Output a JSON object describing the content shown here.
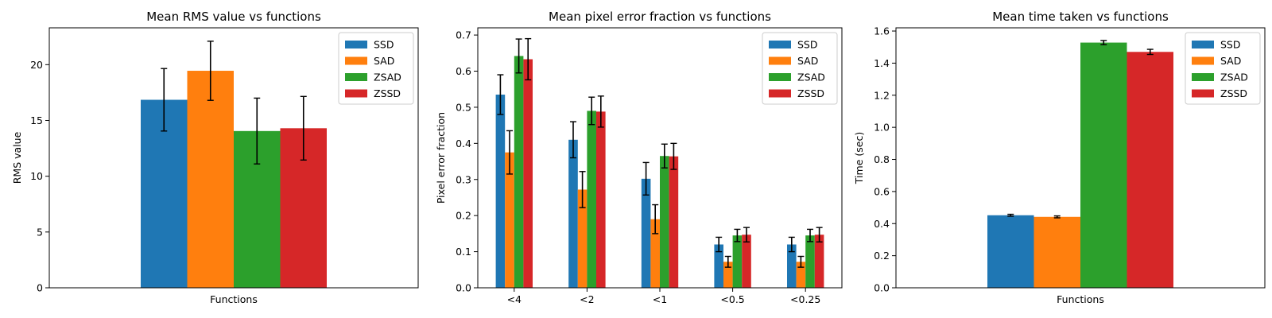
{
  "figure": {
    "colors": [
      "#1f77b4",
      "#ff7f0e",
      "#2ca02c",
      "#d62728"
    ]
  },
  "chart_data": [
    {
      "type": "bar",
      "title": "Mean RMS value vs functions",
      "xlabel": "Functions",
      "ylabel": "RMS value",
      "categories": [
        ""
      ],
      "ylim": [
        0,
        23.3
      ],
      "yticks": [
        0,
        5,
        10,
        15,
        20
      ],
      "legend": "top-right",
      "grid": false,
      "series": [
        {
          "name": "SSD",
          "values": [
            16.85
          ],
          "errors": [
            2.8
          ]
        },
        {
          "name": "SAD",
          "values": [
            19.45
          ],
          "errors": [
            2.65
          ]
        },
        {
          "name": "ZSAD",
          "values": [
            14.05
          ],
          "errors": [
            2.95
          ]
        },
        {
          "name": "ZSSD",
          "values": [
            14.3
          ],
          "errors": [
            2.85
          ]
        }
      ]
    },
    {
      "type": "bar",
      "title": "Mean pixel error fraction vs functions",
      "xlabel": "",
      "ylabel": "Pixel error fraction",
      "categories": [
        "<4",
        "<2",
        "<1",
        "<0.5",
        "<0.25"
      ],
      "ylim": [
        0,
        0.72
      ],
      "yticks": [
        0.0,
        0.1,
        0.2,
        0.3,
        0.4,
        0.5,
        0.6,
        0.7
      ],
      "legend": "top-right",
      "grid": false,
      "series": [
        {
          "name": "SSD",
          "values": [
            0.535,
            0.41,
            0.302,
            0.12,
            0.12
          ],
          "errors": [
            0.055,
            0.05,
            0.045,
            0.02,
            0.02
          ]
        },
        {
          "name": "SAD",
          "values": [
            0.375,
            0.272,
            0.19,
            0.072,
            0.072
          ],
          "errors": [
            0.06,
            0.05,
            0.04,
            0.015,
            0.015
          ]
        },
        {
          "name": "ZSAD",
          "values": [
            0.642,
            0.49,
            0.365,
            0.145,
            0.145
          ],
          "errors": [
            0.047,
            0.038,
            0.033,
            0.017,
            0.017
          ]
        },
        {
          "name": "ZSSD",
          "values": [
            0.633,
            0.488,
            0.364,
            0.147,
            0.147
          ],
          "errors": [
            0.057,
            0.043,
            0.036,
            0.02,
            0.02
          ]
        }
      ]
    },
    {
      "type": "bar",
      "title": "Mean time taken vs functions",
      "xlabel": "Functions",
      "ylabel": "Time (sec)",
      "categories": [
        ""
      ],
      "ylim": [
        0,
        1.62
      ],
      "yticks": [
        0.0,
        0.2,
        0.4,
        0.6,
        0.8,
        1.0,
        1.2,
        1.4,
        1.6
      ],
      "legend": "top-right",
      "grid": false,
      "series": [
        {
          "name": "SSD",
          "values": [
            0.452
          ],
          "errors": [
            0.006
          ]
        },
        {
          "name": "SAD",
          "values": [
            0.442
          ],
          "errors": [
            0.006
          ]
        },
        {
          "name": "ZSAD",
          "values": [
            1.528
          ],
          "errors": [
            0.013
          ]
        },
        {
          "name": "ZSSD",
          "values": [
            1.47
          ],
          "errors": [
            0.016
          ]
        }
      ]
    }
  ]
}
